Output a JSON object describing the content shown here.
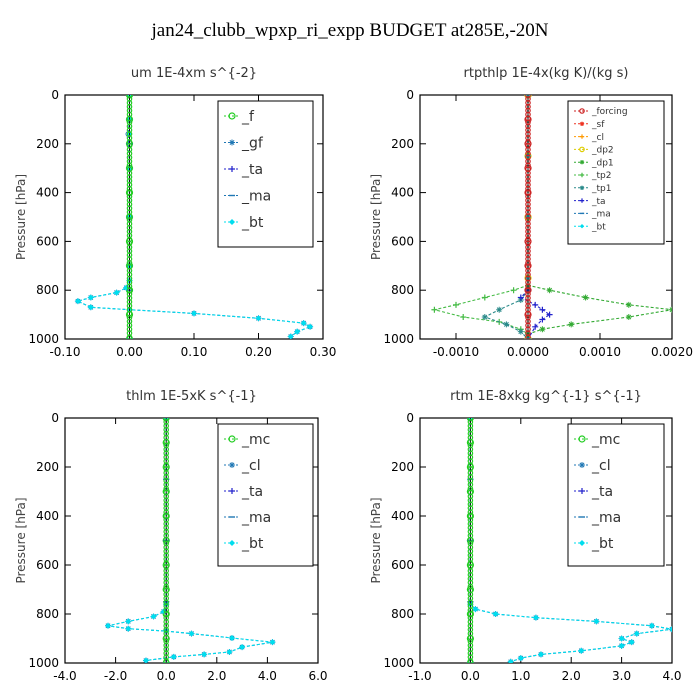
{
  "figure": {
    "title": "jan24_clubb_wpxp_ri_expp  BUDGET at285E,-20N"
  },
  "chart_data": [
    {
      "type": "line",
      "title": "um   1E-4xm s^{-2}",
      "ylabel": "Pressure [hPa]",
      "xlim": [
        -0.1,
        0.3
      ],
      "ylim": [
        1000,
        0
      ],
      "xticks": [
        "-0.10",
        "0.00",
        "0.10",
        "0.20",
        "0.30"
      ],
      "yticks": [
        "0",
        "200",
        "400",
        "600",
        "800",
        "1000"
      ],
      "legend_position": "top-right",
      "series": [
        {
          "name": "_f",
          "color": "#22cc22",
          "marker": "circle",
          "x": [
            0.0,
            0.0,
            0.0,
            0.0,
            0.0,
            0.0,
            0.0,
            0.0,
            0.0,
            0.0,
            0.0
          ],
          "y": [
            0,
            100,
            200,
            300,
            400,
            500,
            600,
            700,
            800,
            900,
            1000
          ]
        },
        {
          "name": "_gf",
          "color": "#1f77b4",
          "marker": "star",
          "x": [
            0.0,
            0.0,
            -0.002,
            0.0,
            0.0,
            0.0,
            0.0,
            -0.005,
            -0.02,
            -0.06,
            -0.08,
            -0.06,
            0.0,
            0.1,
            0.2,
            0.27,
            0.28,
            0.26,
            0.25
          ],
          "y": [
            0,
            100,
            160,
            300,
            500,
            700,
            760,
            790,
            810,
            830,
            845,
            870,
            880,
            895,
            915,
            935,
            950,
            970,
            990
          ]
        },
        {
          "name": "_ta",
          "color": "#2222cc",
          "marker": "plus",
          "x": [
            0.0,
            0.0,
            0.0,
            0.0,
            0.0
          ],
          "y": [
            0,
            200,
            500,
            800,
            1000
          ]
        },
        {
          "name": "_ma",
          "color": "#1f77b4",
          "marker": "dash",
          "x": [
            0.0,
            0.0,
            0.0,
            0.0,
            0.0
          ],
          "y": [
            0,
            200,
            500,
            800,
            1000
          ]
        },
        {
          "name": "_bt",
          "color": "#00ddee",
          "marker": "diamond",
          "x": [
            0.0,
            0.0,
            0.0,
            0.0,
            0.0,
            0.0,
            0.0,
            -0.005,
            -0.02,
            -0.06,
            -0.08,
            -0.06,
            0.0,
            0.1,
            0.2,
            0.27,
            0.28,
            0.26,
            0.25
          ],
          "y": [
            0,
            100,
            160,
            300,
            500,
            700,
            760,
            790,
            810,
            830,
            845,
            870,
            880,
            895,
            915,
            935,
            950,
            970,
            990
          ]
        }
      ]
    },
    {
      "type": "line",
      "title": "rtpthlp   1E-4x(kg K)/(kg s)",
      "ylabel": "Pressure [hPa]",
      "xlim": [
        -0.0015,
        0.002
      ],
      "ylim": [
        1000,
        0
      ],
      "xticks": [
        "-0.0010",
        "0.0000",
        "0.0010",
        "0.0020"
      ],
      "yticks": [
        "0",
        "200",
        "400",
        "600",
        "800",
        "1000"
      ],
      "legend_position": "top-right",
      "series": [
        {
          "name": "_forcing",
          "color": "#cc2222",
          "marker": "circle",
          "x": [
            0.0,
            0.0,
            0.0,
            0.0,
            0.0,
            0.0,
            0.0,
            0.0,
            0.0,
            0.0,
            0.0
          ],
          "y": [
            0,
            100,
            200,
            300,
            400,
            500,
            600,
            700,
            800,
            900,
            1000
          ]
        },
        {
          "name": "_sf",
          "color": "#ee3322",
          "marker": "star",
          "x": [
            0.0,
            0.0,
            0.0,
            0.0,
            0.0
          ],
          "y": [
            0,
            250,
            500,
            750,
            1000
          ]
        },
        {
          "name": "_cl",
          "color": "#ff9900",
          "marker": "plus",
          "x": [
            0.0,
            0.0,
            0.0,
            0.0,
            0.0
          ],
          "y": [
            0,
            250,
            500,
            750,
            1000
          ]
        },
        {
          "name": "_dp2",
          "color": "#ddcc00",
          "marker": "circle",
          "x": [
            0.0,
            0.0,
            0.0,
            0.0,
            0.0
          ],
          "y": [
            0,
            250,
            500,
            750,
            1000
          ]
        },
        {
          "name": "_dp1",
          "color": "#33aa33",
          "marker": "star",
          "x": [
            0.0,
            0.0,
            0.0003,
            0.0008,
            0.0014,
            0.002,
            0.0014,
            0.0006,
            0.0002,
            0.0,
            0.0
          ],
          "y": [
            0,
            780,
            800,
            830,
            860,
            880,
            910,
            940,
            960,
            980,
            1000
          ]
        },
        {
          "name": "_tp2",
          "color": "#44bb44",
          "marker": "plus",
          "x": [
            0.0,
            0.0,
            -0.0002,
            -0.0006,
            -0.001,
            -0.0013,
            -0.0009,
            -0.0004,
            -0.0001,
            0.0,
            0.0
          ],
          "y": [
            0,
            780,
            800,
            830,
            860,
            880,
            910,
            930,
            960,
            980,
            1000
          ]
        },
        {
          "name": "_tp1",
          "color": "#2a8a8a",
          "marker": "star",
          "x": [
            0.0,
            0.0,
            -0.0001,
            -0.0004,
            -0.0006,
            -0.0003,
            -0.0001,
            0.0
          ],
          "y": [
            0,
            800,
            840,
            880,
            910,
            940,
            970,
            1000
          ]
        },
        {
          "name": "_ta",
          "color": "#2222cc",
          "marker": "plus",
          "x": [
            0.0,
            0.0,
            -0.0001,
            0.0001,
            0.0002,
            0.0003,
            0.0002,
            0.0001,
            0.0
          ],
          "y": [
            0,
            800,
            830,
            860,
            880,
            900,
            920,
            950,
            1000
          ]
        },
        {
          "name": "_ma",
          "color": "#1f77b4",
          "marker": "dash",
          "x": [
            0.0,
            0.0,
            0.0,
            0.0,
            0.0
          ],
          "y": [
            0,
            250,
            500,
            750,
            1000
          ]
        },
        {
          "name": "_bt",
          "color": "#00ddee",
          "marker": "diamond",
          "x": [
            0.0,
            0.0,
            0.0,
            0.0,
            0.0
          ],
          "y": [
            0,
            250,
            500,
            750,
            1000
          ]
        }
      ]
    },
    {
      "type": "line",
      "title": "thlm   1E-5xK s^{-1}",
      "ylabel": "Pressure [hPa]",
      "xlim": [
        -4.0,
        6.0
      ],
      "ylim": [
        1000,
        0
      ],
      "xticks": [
        "-4.0",
        "-2.0",
        "0.0",
        "2.0",
        "4.0",
        "6.0"
      ],
      "yticks": [
        "0",
        "200",
        "400",
        "600",
        "800",
        "1000"
      ],
      "legend_position": "top-right",
      "series": [
        {
          "name": "_mc",
          "color": "#22cc22",
          "marker": "circle",
          "x": [
            0.0,
            0.0,
            0.0,
            0.0,
            0.0,
            0.0,
            0.0,
            0.0,
            0.0,
            0.0,
            0.0
          ],
          "y": [
            0,
            100,
            200,
            300,
            400,
            500,
            600,
            700,
            800,
            900,
            1000
          ]
        },
        {
          "name": "_cl",
          "color": "#1f77b4",
          "marker": "star",
          "x": [
            0.0,
            0.0,
            -0.1,
            -0.5,
            -1.5,
            -2.3,
            -1.5,
            0.0,
            1.0,
            2.6,
            4.2,
            3.0,
            2.5,
            1.5,
            0.3,
            -0.8
          ],
          "y": [
            0,
            760,
            790,
            810,
            830,
            848,
            860,
            870,
            880,
            898,
            915,
            935,
            955,
            965,
            975,
            990
          ]
        },
        {
          "name": "_ta",
          "color": "#2222cc",
          "marker": "plus",
          "x": [
            0.0,
            0.0,
            0.0,
            0.0,
            0.0
          ],
          "y": [
            0,
            250,
            500,
            750,
            1000
          ]
        },
        {
          "name": "_ma",
          "color": "#1f77b4",
          "marker": "dash",
          "x": [
            0.0,
            0.0,
            0.0,
            0.0,
            0.0
          ],
          "y": [
            0,
            250,
            500,
            750,
            1000
          ]
        },
        {
          "name": "_bt",
          "color": "#00ddee",
          "marker": "diamond",
          "x": [
            0.0,
            0.0,
            -0.1,
            -0.5,
            -1.5,
            -2.3,
            -1.5,
            0.0,
            1.0,
            2.6,
            4.2,
            3.0,
            2.5,
            1.5,
            0.3,
            -0.8
          ],
          "y": [
            0,
            760,
            790,
            810,
            830,
            848,
            860,
            870,
            880,
            898,
            915,
            935,
            955,
            965,
            975,
            990
          ]
        }
      ]
    },
    {
      "type": "line",
      "title": "rtm   1E-8xkg kg^{-1} s^{-1}",
      "ylabel": "Pressure [hPa]",
      "xlim": [
        -1.0,
        4.0
      ],
      "ylim": [
        1000,
        0
      ],
      "xticks": [
        "-1.0",
        "0.0",
        "1.0",
        "2.0",
        "3.0",
        "4.0"
      ],
      "yticks": [
        "0",
        "200",
        "400",
        "600",
        "800",
        "1000"
      ],
      "legend_position": "top-right",
      "series": [
        {
          "name": "_mc",
          "color": "#22cc22",
          "marker": "circle",
          "x": [
            0.0,
            0.0,
            0.0,
            0.0,
            0.0,
            0.0,
            0.0,
            0.0,
            0.0,
            0.0,
            0.0
          ],
          "y": [
            0,
            100,
            200,
            300,
            400,
            500,
            600,
            700,
            800,
            900,
            1000
          ]
        },
        {
          "name": "_cl",
          "color": "#1f77b4",
          "marker": "star",
          "x": [
            0.0,
            0.0,
            0.1,
            0.5,
            1.3,
            2.5,
            3.6,
            4.0,
            3.3,
            3.0,
            3.2,
            3.0,
            2.2,
            1.4,
            1.0,
            0.8
          ],
          "y": [
            0,
            760,
            780,
            800,
            815,
            830,
            848,
            862,
            880,
            900,
            915,
            930,
            950,
            965,
            980,
            995
          ]
        },
        {
          "name": "_ta",
          "color": "#2222cc",
          "marker": "plus",
          "x": [
            0.0,
            0.0,
            0.0,
            0.0,
            0.0
          ],
          "y": [
            0,
            250,
            500,
            750,
            1000
          ]
        },
        {
          "name": "_ma",
          "color": "#1f77b4",
          "marker": "dash",
          "x": [
            0.0,
            0.0,
            0.0,
            0.0,
            0.0
          ],
          "y": [
            0,
            250,
            500,
            750,
            1000
          ]
        },
        {
          "name": "_bt",
          "color": "#00ddee",
          "marker": "diamond",
          "x": [
            0.0,
            0.0,
            0.1,
            0.5,
            1.3,
            2.5,
            3.6,
            4.0,
            3.3,
            3.0,
            3.2,
            3.0,
            2.2,
            1.4,
            1.0,
            0.8
          ],
          "y": [
            0,
            760,
            780,
            800,
            815,
            830,
            848,
            862,
            880,
            900,
            915,
            930,
            950,
            965,
            980,
            995
          ]
        }
      ]
    }
  ]
}
